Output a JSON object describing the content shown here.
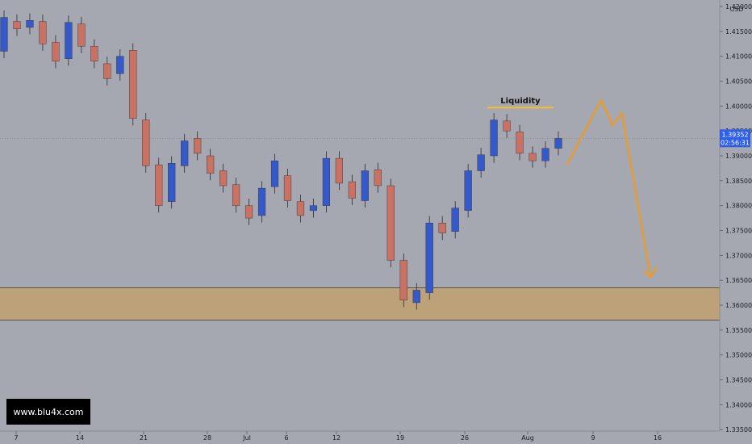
{
  "chart_data": {
    "type": "candlestick",
    "currency": "USD",
    "y_ticks": [
      "1.42000",
      "1.41500",
      "1.41000",
      "1.40500",
      "1.40000",
      "1.39500",
      "1.39000",
      "1.38500",
      "1.38000",
      "1.37500",
      "1.37000",
      "1.36500",
      "1.36000",
      "1.35500",
      "1.35000",
      "1.34500",
      "1.34000",
      "1.33500"
    ],
    "ylim": [
      1.3347,
      1.4213
    ],
    "x_ticks": [
      "7",
      "14",
      "21",
      "28",
      "Jul",
      "6",
      "12",
      "19",
      "26",
      "Aug",
      "9",
      "16"
    ],
    "current_price": "1.39352",
    "countdown": "02:56:31",
    "annotation": "Liquidity",
    "liquidity_level": 1.3997,
    "demand_zone": [
      1.357,
      1.3635
    ],
    "projection_path": [
      1.3883,
      1.4012,
      1.3962,
      1.3985,
      1.3656
    ],
    "watermark": "www.blu4x.com",
    "colors": {
      "background": "#a5a8b0",
      "bull": "#3559c9",
      "bear": "#c97162",
      "zone": "#bfa070",
      "projection": "#ee9b24",
      "annotation_line": "#f0c030",
      "price_tag": "#2f5fe8",
      "watermark_bg": "#000000"
    },
    "series": [
      {
        "date": "Jun 7",
        "open": 1.411,
        "close": 1.4178
      },
      {
        "date": "Jun 8",
        "open": 1.417,
        "close": 1.4155
      },
      {
        "date": "Jun 9",
        "open": 1.4158,
        "close": 1.4172
      },
      {
        "date": "Jun 10",
        "open": 1.417,
        "close": 1.4125
      },
      {
        "date": "Jun 11",
        "open": 1.4128,
        "close": 1.409
      },
      {
        "date": "Jun 14",
        "open": 1.4095,
        "close": 1.4168
      },
      {
        "date": "Jun 15",
        "open": 1.4165,
        "close": 1.412
      },
      {
        "date": "Jun 16",
        "open": 1.412,
        "close": 1.409
      },
      {
        "date": "Jun 17",
        "open": 1.4085,
        "close": 1.4055
      },
      {
        "date": "Jun 18",
        "open": 1.4065,
        "close": 1.41
      },
      {
        "date": "Jun 21",
        "open": 1.4112,
        "close": 1.3975
      },
      {
        "date": "Jun 22",
        "open": 1.3972,
        "close": 1.388
      },
      {
        "date": "Jun 23",
        "open": 1.3882,
        "close": 1.38
      },
      {
        "date": "Jun 24",
        "open": 1.3808,
        "close": 1.3885
      },
      {
        "date": "Jun 25",
        "open": 1.388,
        "close": 1.393
      },
      {
        "date": "Jun 28",
        "open": 1.3935,
        "close": 1.3905
      },
      {
        "date": "Jun 29",
        "open": 1.39,
        "close": 1.3865
      },
      {
        "date": "Jun 30",
        "open": 1.387,
        "close": 1.384
      },
      {
        "date": "Jul 1",
        "open": 1.3842,
        "close": 1.38
      },
      {
        "date": "Jul 2",
        "open": 1.38,
        "close": 1.3775
      },
      {
        "date": "Jul 5",
        "open": 1.378,
        "close": 1.3835
      },
      {
        "date": "Jul 6",
        "open": 1.3838,
        "close": 1.389
      },
      {
        "date": "Jul 7",
        "open": 1.386,
        "close": 1.381
      },
      {
        "date": "Jul 8",
        "open": 1.3808,
        "close": 1.378
      },
      {
        "date": "Jul 9",
        "open": 1.379,
        "close": 1.38
      },
      {
        "date": "Jul 12",
        "open": 1.38,
        "close": 1.3895
      },
      {
        "date": "Jul 13",
        "open": 1.3895,
        "close": 1.3845
      },
      {
        "date": "Jul 14",
        "open": 1.3848,
        "close": 1.3815
      },
      {
        "date": "Jul 15",
        "open": 1.381,
        "close": 1.387
      },
      {
        "date": "Jul 16",
        "open": 1.3872,
        "close": 1.384
      },
      {
        "date": "Jul 19",
        "open": 1.384,
        "close": 1.369
      },
      {
        "date": "Jul 20",
        "open": 1.369,
        "close": 1.361
      },
      {
        "date": "Jul 21",
        "open": 1.3605,
        "close": 1.363
      },
      {
        "date": "Jul 22",
        "open": 1.3625,
        "close": 1.3765
      },
      {
        "date": "Jul 23",
        "open": 1.3765,
        "close": 1.3745
      },
      {
        "date": "Jul 26",
        "open": 1.3748,
        "close": 1.3795
      },
      {
        "date": "Jul 27",
        "open": 1.379,
        "close": 1.387
      },
      {
        "date": "Jul 28",
        "open": 1.387,
        "close": 1.3902
      },
      {
        "date": "Jul 29",
        "open": 1.39,
        "close": 1.3972
      },
      {
        "date": "Jul 30",
        "open": 1.397,
        "close": 1.395
      },
      {
        "date": "Aug 2",
        "open": 1.3948,
        "close": 1.3905
      },
      {
        "date": "Aug 3",
        "open": 1.3905,
        "close": 1.389
      },
      {
        "date": "Aug 4",
        "open": 1.389,
        "close": 1.3915
      },
      {
        "date": "Aug 5",
        "open": 1.3915,
        "close": 1.3935
      }
    ]
  }
}
